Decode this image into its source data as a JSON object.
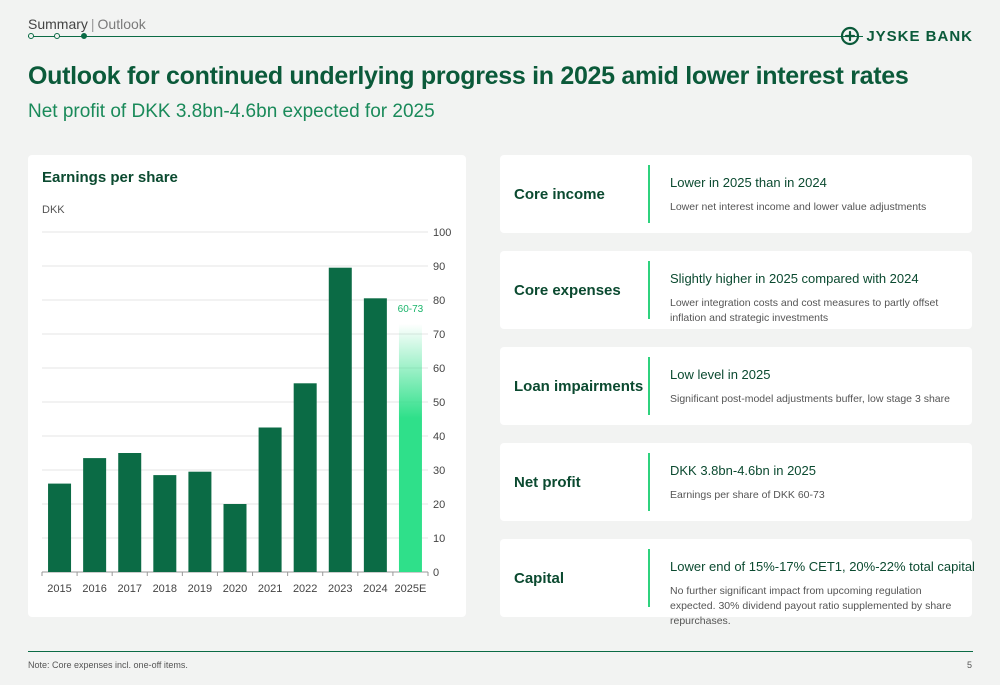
{
  "header": {
    "breadcrumb_section": "Summary",
    "breadcrumb_page": "Outlook",
    "brand": "JYSKE BANK"
  },
  "title": "Outlook for continued underlying progress in 2025 amid lower interest rates",
  "subtitle": "Net profit of DKK 3.8bn-4.6bn expected for 2025",
  "chart_data": {
    "type": "bar",
    "title": "Earnings per share",
    "ylabel": "DKK",
    "xlabel": "",
    "categories": [
      "2015",
      "2016",
      "2017",
      "2018",
      "2019",
      "2020",
      "2021",
      "2022",
      "2023",
      "2024",
      "2025E"
    ],
    "values": [
      26,
      33.5,
      35,
      28.5,
      29.5,
      20,
      42.5,
      55.5,
      89.5,
      80.5,
      66.5
    ],
    "estimate_range": [
      60,
      73
    ],
    "estimate_label": "60-73",
    "ylim": [
      0,
      100
    ],
    "yticks": [
      0,
      10,
      20,
      30,
      40,
      50,
      60,
      70,
      80,
      90,
      100
    ],
    "grid": true,
    "colors": {
      "bar": "#0b6b45",
      "estimate": "#2fe08a",
      "gridline": "#e6e6e6"
    }
  },
  "outlook": [
    {
      "label": "Core income",
      "head": "Lower in 2025 than in 2024",
      "desc": "Lower net interest income and lower value adjustments"
    },
    {
      "label": "Core expenses",
      "head": "Slightly higher in 2025 compared with 2024",
      "desc": "Lower integration costs and cost measures to partly offset inflation and strategic investments"
    },
    {
      "label": "Loan impairments",
      "head": "Low level in 2025",
      "desc": "Significant post-model adjustments buffer, low stage 3 share"
    },
    {
      "label": "Net profit",
      "head": "DKK 3.8bn-4.6bn in 2025",
      "desc": "Earnings per share of DKK 60-73"
    },
    {
      "label": "Capital",
      "head": "Lower end of 15%-17% CET1, 20%-22% total capital",
      "desc": "No further significant impact from upcoming regulation expected. 30% dividend payout ratio supplemented by share repurchases."
    }
  ],
  "footer": {
    "note": "Note: Core expenses incl. one-off items.",
    "page": "5"
  },
  "colors": {
    "brand_dark": "#0b5a3a",
    "accent": "#2fd27e",
    "background": "#f2f3f2"
  }
}
